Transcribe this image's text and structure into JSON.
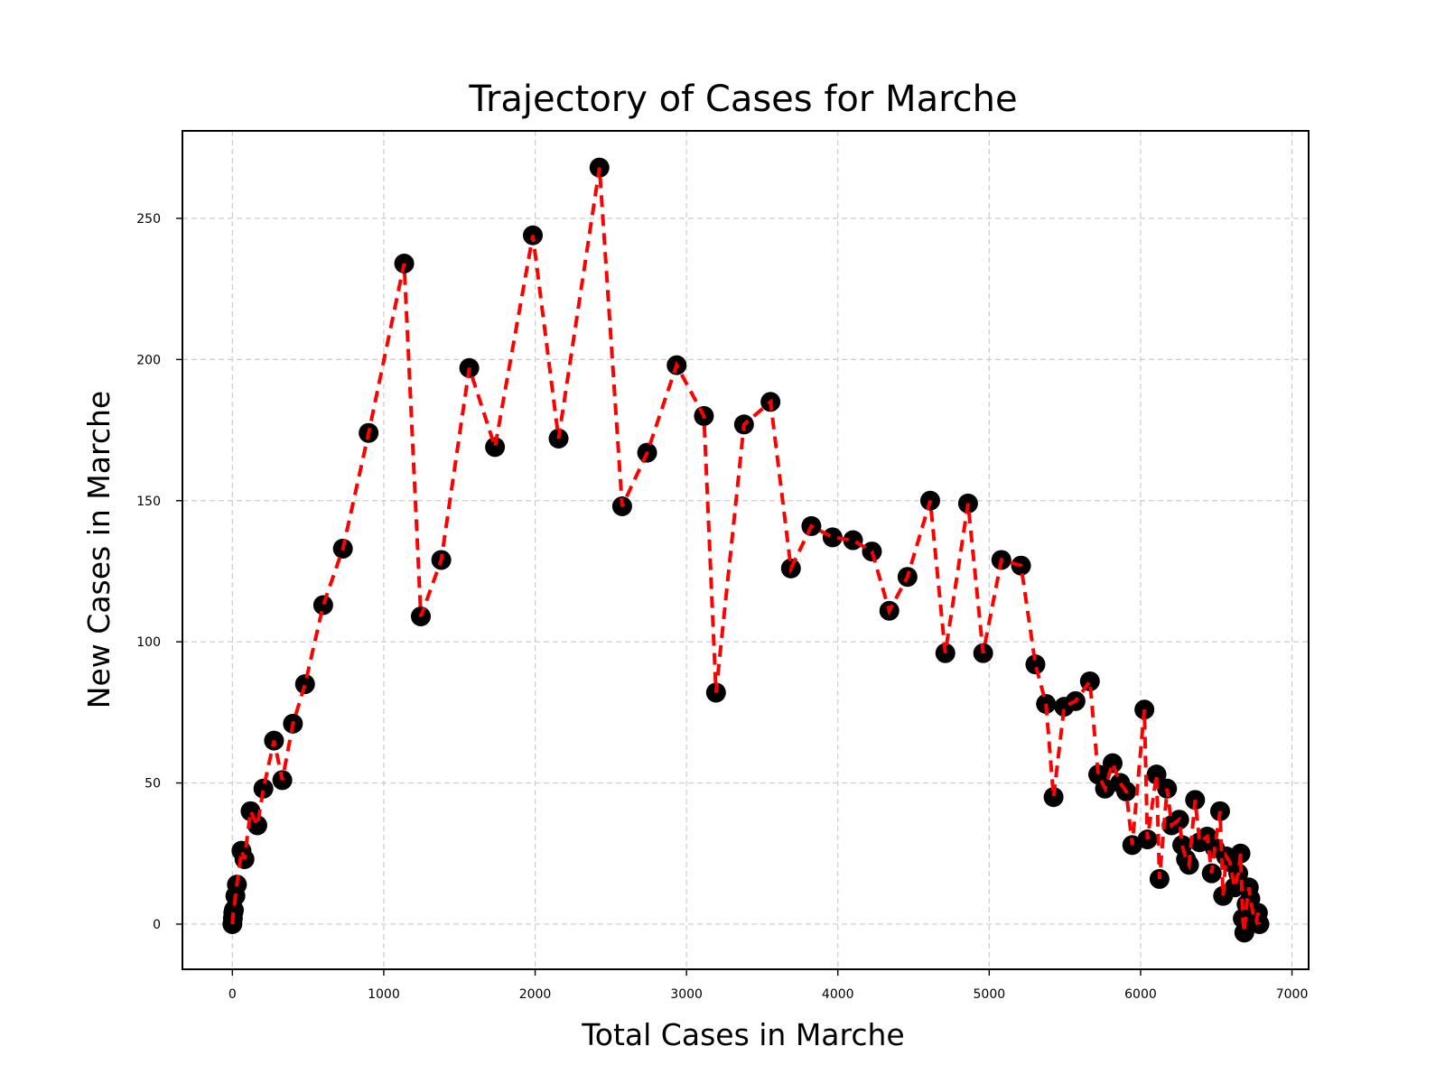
{
  "chart_data": {
    "type": "line",
    "title": "Trajectory of Cases for Marche",
    "xlabel": "Total Cases in Marche",
    "ylabel": "New Cases in Marche",
    "xlim": [
      -330,
      7110
    ],
    "ylim": [
      -16,
      281
    ],
    "xticks": [
      0,
      1000,
      2000,
      3000,
      4000,
      5000,
      6000,
      7000
    ],
    "yticks": [
      0,
      50,
      100,
      150,
      200,
      250
    ],
    "grid": true,
    "line_color": "#ff0000",
    "marker_color": "#000000",
    "series": [
      {
        "x": [
          0,
          3,
          6,
          10,
          20,
          30,
          60,
          80,
          120,
          165,
          205,
          275,
          330,
          400,
          480,
          600,
          730,
          900,
          1135,
          1245,
          1380,
          1565,
          1735,
          1985,
          2155,
          2425,
          2575,
          2740,
          2935,
          3115,
          3195,
          3380,
          3555,
          3690,
          3825,
          3965,
          4100,
          4225,
          4340,
          4460,
          4610,
          4710,
          4860,
          4960,
          5080,
          5210,
          5305,
          5375,
          5425,
          5495,
          5570,
          5665,
          5720,
          5765,
          5815,
          5865,
          5905,
          5945,
          6025,
          6045,
          6105,
          6125,
          6175,
          6205,
          6255,
          6275,
          6300,
          6320,
          6360,
          6390,
          6440,
          6470,
          6490,
          6525,
          6545,
          6565,
          6590,
          6620,
          6645,
          6660,
          6675,
          6685,
          6700,
          6715,
          6725,
          6745,
          6765,
          6775,
          6785
        ],
        "y": [
          0,
          2,
          4,
          5,
          10,
          14,
          26,
          23,
          40,
          35,
          48,
          65,
          51,
          71,
          85,
          113,
          133,
          174,
          234,
          109,
          129,
          197,
          169,
          244,
          172,
          268,
          148,
          167,
          198,
          180,
          82,
          177,
          185,
          126,
          141,
          137,
          136,
          132,
          111,
          123,
          150,
          96,
          149,
          96,
          129,
          127,
          92,
          78,
          45,
          77,
          79,
          86,
          53,
          48,
          57,
          50,
          47,
          28,
          76,
          30,
          53,
          16,
          48,
          35,
          37,
          28,
          23,
          21,
          44,
          29,
          31,
          18,
          27,
          40,
          10,
          24,
          22,
          13,
          18,
          25,
          2,
          -3,
          7,
          13,
          9,
          3,
          1,
          4,
          0
        ]
      }
    ]
  }
}
